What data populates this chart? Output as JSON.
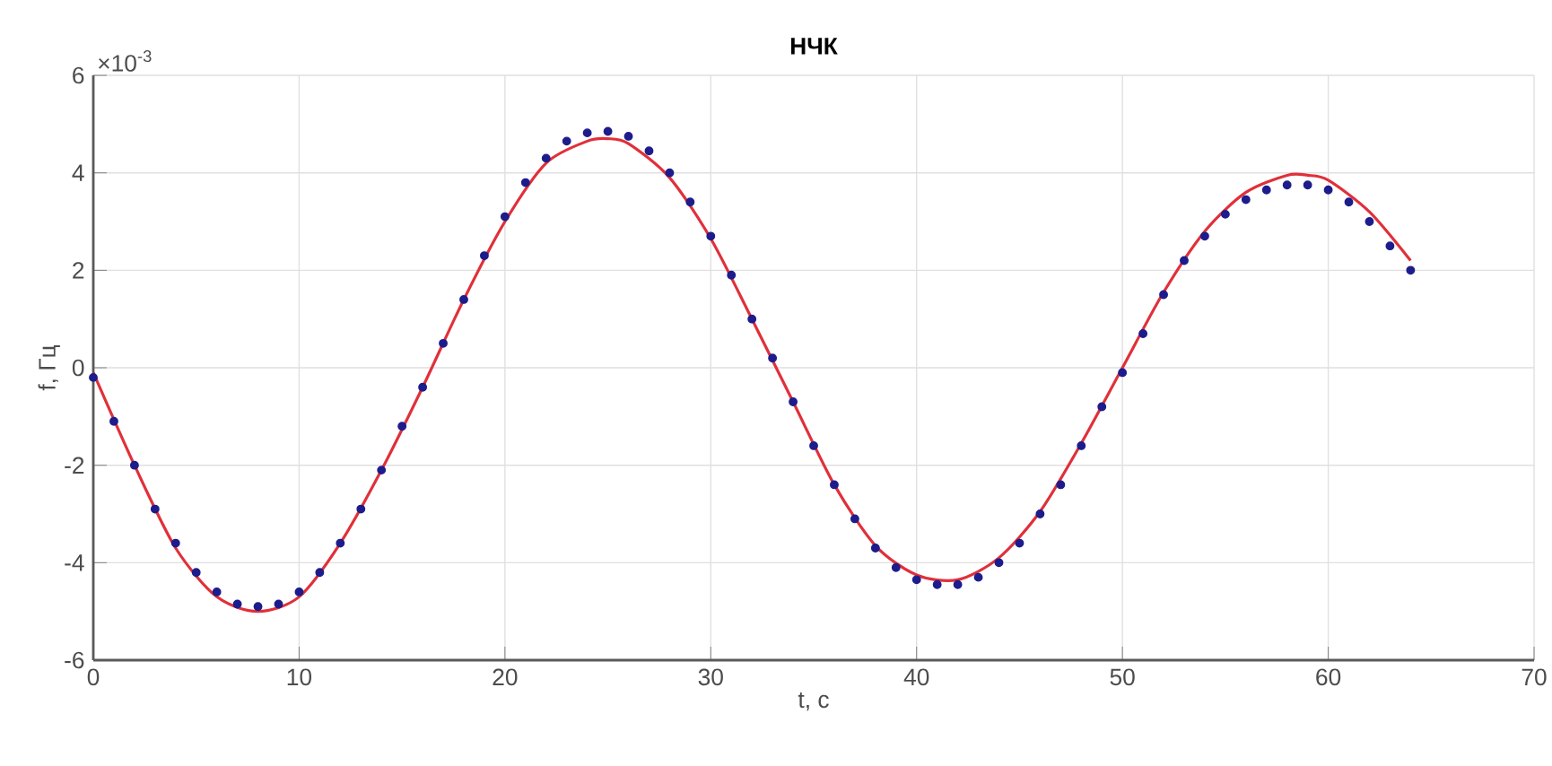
{
  "chart_data": {
    "type": "scatter",
    "title": "НЧК",
    "xlabel": "t, c",
    "ylabel": "f, Гц",
    "annotations": [
      "×10$^{-3}$"
    ],
    "xlim": [
      0,
      70
    ],
    "xticks": [
      0,
      10,
      20,
      30,
      40,
      50,
      60,
      70
    ],
    "ylim": [
      -6,
      6
    ],
    "yticks": [
      -6,
      -4,
      -2,
      0,
      2,
      4,
      6
    ],
    "grid": true,
    "series": [
      {
        "type": "line",
        "color": "#e0303a",
        "marker": "none",
        "line_style": "solid",
        "x": [
          0,
          2,
          4,
          6,
          8,
          10,
          12,
          14,
          16,
          18,
          20,
          22,
          24,
          25,
          26,
          28,
          30,
          32,
          34,
          36,
          38,
          40,
          42,
          44,
          46,
          48,
          50,
          52,
          54,
          56,
          58,
          59,
          60,
          62,
          64
        ],
        "values": [
          -0.1,
          -2.0,
          -3.7,
          -4.7,
          -5.0,
          -4.7,
          -3.6,
          -2.1,
          -0.4,
          1.4,
          3.0,
          4.2,
          4.65,
          4.7,
          4.6,
          3.9,
          2.65,
          1.0,
          -0.7,
          -2.4,
          -3.65,
          -4.25,
          -4.35,
          -3.9,
          -2.95,
          -1.55,
          0.0,
          1.55,
          2.8,
          3.6,
          3.95,
          3.95,
          3.85,
          3.2,
          2.2
        ]
      },
      {
        "color": "#1c1c8c",
        "marker": "circle",
        "x": [
          0,
          1,
          2,
          3,
          4,
          5,
          6,
          7,
          8,
          9,
          10,
          11,
          12,
          13,
          14,
          15,
          16,
          17,
          18,
          19,
          20,
          21,
          22,
          23,
          24,
          25,
          26,
          27,
          28,
          29,
          30,
          31,
          32,
          33,
          34,
          35,
          36,
          37,
          38,
          39,
          40,
          41,
          42,
          43,
          44,
          45,
          46,
          47,
          48,
          49,
          50,
          51,
          52,
          53,
          54,
          55,
          56,
          57,
          58,
          59,
          60,
          61,
          62,
          63,
          64
        ],
        "values": [
          -0.2,
          -1.1,
          -2.0,
          -2.9,
          -3.6,
          -4.2,
          -4.6,
          -4.85,
          -4.9,
          -4.85,
          -4.6,
          -4.2,
          -3.6,
          -2.9,
          -2.1,
          -1.2,
          -0.4,
          0.5,
          1.4,
          2.3,
          3.1,
          3.8,
          4.3,
          4.65,
          4.82,
          4.85,
          4.75,
          4.45,
          4.0,
          3.4,
          2.7,
          1.9,
          1.0,
          0.2,
          -0.7,
          -1.6,
          -2.4,
          -3.1,
          -3.7,
          -4.1,
          -4.35,
          -4.45,
          -4.45,
          -4.3,
          -4.0,
          -3.6,
          -3.0,
          -2.4,
          -1.6,
          -0.8,
          -0.1,
          0.7,
          1.5,
          2.2,
          2.7,
          3.15,
          3.45,
          3.65,
          3.75,
          3.75,
          3.65,
          3.4,
          3.0,
          2.5,
          2.0
        ]
      }
    ]
  }
}
